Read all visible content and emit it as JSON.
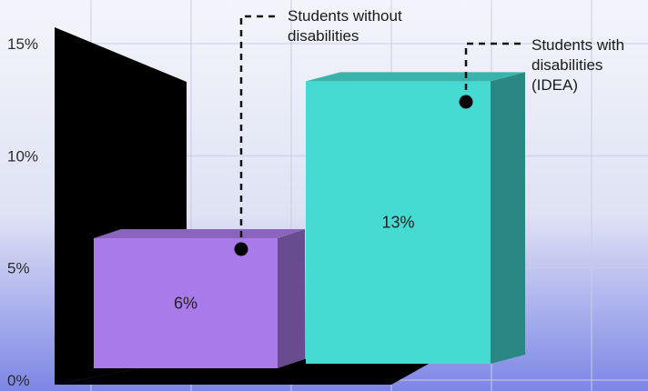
{
  "chart_data": {
    "type": "bar",
    "title": "",
    "xlabel": "",
    "ylabel": "",
    "ylim": [
      0,
      15
    ],
    "y_ticks": [
      "0%",
      "5%",
      "10%",
      "15%"
    ],
    "grid": true,
    "series": [
      {
        "name": "Students without disabilities",
        "legend_lines": [
          "Students without",
          "disabilities"
        ],
        "value": 6,
        "label": "6%",
        "color": "#a97ae9"
      },
      {
        "name": "Students with disabilities (IDEA)",
        "legend_lines": [
          "Students with",
          "disabilities",
          "(IDEA)"
        ],
        "value": 13,
        "label": "13%",
        "color": "#45dad2"
      }
    ],
    "legend_placement": "callouts-top"
  }
}
